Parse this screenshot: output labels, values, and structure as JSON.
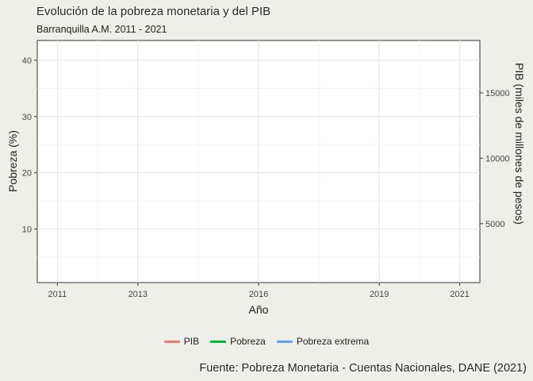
{
  "title": "Evolución de la pobreza monetaria y del PIB",
  "subtitle": "Barranquilla A.M. 2011 - 2021",
  "caption": "Fuente: Pobreza Monetaria - Cuentas Nacionales, DANE (2021)",
  "chart_data": {
    "type": "line",
    "xlabel": "Año",
    "ylabel": "Pobreza (%)",
    "y2label": "PIB (miles de millones de pesos)",
    "x_ticks": [
      2011,
      2013,
      2016,
      2019,
      2021
    ],
    "y_ticks": [
      10,
      20,
      30,
      40
    ],
    "y2_ticks": [
      5000,
      10000,
      15000
    ],
    "xlim": [
      2010.5,
      2021.5
    ],
    "ylim": [
      0.5,
      43.5
    ],
    "y2lim": [
      500,
      19000
    ],
    "grid": true,
    "legend_position": "bottom",
    "series": [
      {
        "name": "PIB",
        "color": "#f8766d",
        "x": [],
        "values": []
      },
      {
        "name": "Pobreza",
        "color": "#00ba38",
        "x": [],
        "values": []
      },
      {
        "name": "Pobreza extrema",
        "color": "#619cff",
        "x": [],
        "values": []
      }
    ]
  }
}
